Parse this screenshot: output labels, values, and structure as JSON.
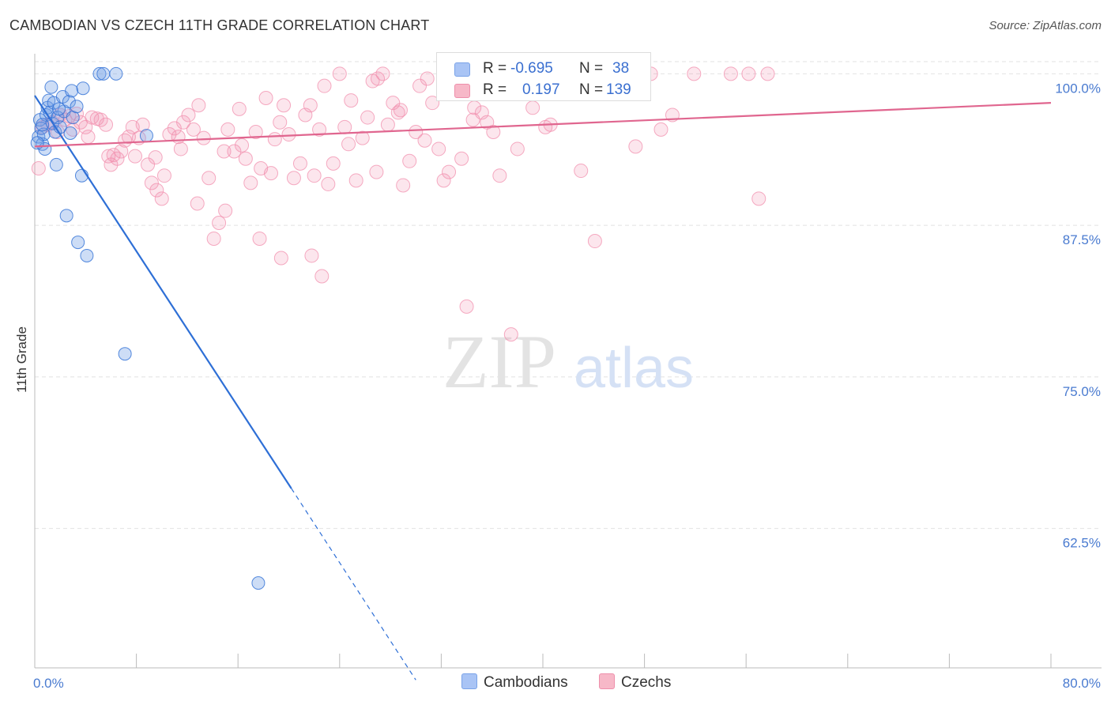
{
  "title": "CAMBODIAN VS CZECH 11TH GRADE CORRELATION CHART",
  "source": "Source: ZipAtlas.com",
  "watermark": {
    "zip": "ZIP",
    "atlas": "atlas"
  },
  "legend": {
    "rows": [
      {
        "r_label": "R =",
        "r_value": "-0.695",
        "n_label": "N =",
        "n_value": "38",
        "color": "#a9c4f5",
        "border": "#7aa3e8"
      },
      {
        "r_label": "R =",
        "r_value": "0.197",
        "n_label": "N =",
        "n_value": "139",
        "color": "#f7b8c8",
        "border": "#ee8fab"
      }
    ]
  },
  "bottom_legend": {
    "cambodians": "Cambodians",
    "czechs": "Czechs"
  },
  "colors": {
    "cambodian": "#6f9fe6",
    "cambodian_line": "#2e6fd6",
    "czech": "#f28fae",
    "czech_line": "#e0668f",
    "tick_label": "#4a7bd0",
    "grid": "#e2e2e2"
  },
  "chart_data": {
    "type": "scatter",
    "title": "CAMBODIAN VS CZECH 11TH GRADE CORRELATION CHART",
    "xlabel": "",
    "ylabel": "11th Grade",
    "xlim": [
      0,
      80
    ],
    "ylim": [
      51,
      101
    ],
    "x_tick_labels": [
      "0.0%",
      "80.0%"
    ],
    "y_ticks": [
      62.5,
      75.0,
      87.5,
      100.0
    ],
    "y_tick_labels": [
      "62.5%",
      "75.0%",
      "87.5%",
      "100.0%"
    ],
    "grid": true,
    "legend_position": "top-center",
    "series": [
      {
        "name": "Cambodians",
        "points": [
          [
            0.3,
            94.8
          ],
          [
            0.4,
            96.2
          ],
          [
            0.5,
            95.5
          ],
          [
            0.6,
            94.2
          ],
          [
            0.7,
            95.0
          ],
          [
            0.8,
            93.8
          ],
          [
            0.9,
            96.6
          ],
          [
            1.0,
            97.2
          ],
          [
            1.1,
            97.8
          ],
          [
            1.2,
            96.8
          ],
          [
            1.3,
            98.9
          ],
          [
            1.4,
            95.9
          ],
          [
            1.5,
            97.6
          ],
          [
            1.6,
            95.2
          ],
          [
            1.7,
            92.5
          ],
          [
            1.8,
            96.4
          ],
          [
            2.0,
            95.6
          ],
          [
            2.2,
            98.1
          ],
          [
            2.3,
            96.9
          ],
          [
            2.5,
            88.3
          ],
          [
            2.7,
            97.7
          ],
          [
            2.8,
            95.1
          ],
          [
            2.9,
            98.6
          ],
          [
            3.0,
            96.4
          ],
          [
            3.3,
            97.3
          ],
          [
            3.4,
            86.1
          ],
          [
            3.7,
            91.6
          ],
          [
            3.8,
            98.8
          ],
          [
            4.1,
            85.0
          ],
          [
            5.1,
            100.0
          ],
          [
            5.4,
            100.0
          ],
          [
            6.4,
            100.0
          ],
          [
            7.1,
            76.9
          ],
          [
            8.8,
            94.9
          ],
          [
            17.6,
            58.0
          ],
          [
            0.2,
            94.3
          ],
          [
            0.6,
            95.8
          ],
          [
            1.9,
            97.1
          ]
        ]
      },
      {
        "name": "Czechs",
        "points": [
          [
            0.3,
            92.2
          ],
          [
            0.6,
            95.6
          ],
          [
            1.0,
            95.8
          ],
          [
            1.4,
            96.0
          ],
          [
            1.8,
            95.2
          ],
          [
            2.0,
            96.6
          ],
          [
            2.4,
            96.2
          ],
          [
            2.7,
            96.5
          ],
          [
            3.0,
            95.4
          ],
          [
            3.3,
            96.7
          ],
          [
            3.6,
            96.0
          ],
          [
            4.0,
            95.6
          ],
          [
            4.2,
            94.8
          ],
          [
            4.5,
            96.4
          ],
          [
            4.9,
            96.3
          ],
          [
            5.2,
            96.2
          ],
          [
            5.6,
            95.8
          ],
          [
            6.0,
            92.5
          ],
          [
            6.2,
            93.3
          ],
          [
            6.5,
            93.0
          ],
          [
            6.8,
            93.6
          ],
          [
            7.1,
            94.5
          ],
          [
            7.4,
            94.8
          ],
          [
            7.7,
            95.6
          ],
          [
            8.2,
            94.7
          ],
          [
            8.5,
            95.8
          ],
          [
            8.9,
            92.5
          ],
          [
            9.2,
            91.0
          ],
          [
            9.5,
            93.1
          ],
          [
            10.0,
            89.7
          ],
          [
            10.2,
            91.6
          ],
          [
            10.6,
            95.0
          ],
          [
            11.0,
            95.5
          ],
          [
            11.3,
            94.8
          ],
          [
            11.7,
            96.0
          ],
          [
            12.1,
            96.6
          ],
          [
            12.5,
            95.4
          ],
          [
            12.9,
            97.4
          ],
          [
            13.3,
            94.7
          ],
          [
            13.7,
            91.4
          ],
          [
            14.1,
            86.4
          ],
          [
            14.5,
            87.7
          ],
          [
            14.9,
            93.6
          ],
          [
            15.2,
            95.4
          ],
          [
            15.7,
            93.6
          ],
          [
            16.1,
            97.1
          ],
          [
            16.3,
            94.1
          ],
          [
            16.6,
            93.0
          ],
          [
            17.0,
            91.0
          ],
          [
            17.4,
            95.2
          ],
          [
            17.8,
            92.2
          ],
          [
            18.2,
            98.0
          ],
          [
            18.6,
            91.8
          ],
          [
            18.9,
            94.6
          ],
          [
            19.3,
            96.0
          ],
          [
            19.6,
            97.4
          ],
          [
            20.0,
            95.0
          ],
          [
            20.4,
            91.4
          ],
          [
            20.9,
            92.6
          ],
          [
            21.3,
            96.6
          ],
          [
            21.7,
            97.4
          ],
          [
            22.0,
            91.6
          ],
          [
            22.4,
            95.4
          ],
          [
            22.8,
            99.0
          ],
          [
            23.1,
            90.9
          ],
          [
            23.5,
            92.6
          ],
          [
            24.0,
            100.0
          ],
          [
            24.4,
            95.6
          ],
          [
            24.9,
            97.8
          ],
          [
            25.3,
            91.2
          ],
          [
            25.8,
            94.7
          ],
          [
            26.2,
            96.4
          ],
          [
            26.6,
            99.4
          ],
          [
            27.0,
            99.6
          ],
          [
            27.4,
            100.0
          ],
          [
            27.8,
            95.8
          ],
          [
            28.2,
            97.6
          ],
          [
            28.6,
            96.8
          ],
          [
            29.0,
            90.8
          ],
          [
            29.5,
            92.8
          ],
          [
            30.0,
            95.2
          ],
          [
            30.3,
            99.0
          ],
          [
            30.9,
            99.6
          ],
          [
            31.3,
            97.6
          ],
          [
            31.8,
            93.8
          ],
          [
            32.2,
            91.2
          ],
          [
            32.6,
            91.9
          ],
          [
            33.0,
            99.2
          ],
          [
            33.6,
            93.0
          ],
          [
            34.0,
            80.8
          ],
          [
            34.6,
            97.2
          ],
          [
            35.2,
            96.8
          ],
          [
            35.6,
            96.0
          ],
          [
            36.0,
            99.0
          ],
          [
            36.6,
            91.6
          ],
          [
            37.1,
            99.4
          ],
          [
            37.5,
            78.5
          ],
          [
            38.0,
            93.8
          ],
          [
            38.6,
            99.6
          ],
          [
            39.2,
            97.2
          ],
          [
            39.7,
            100.0
          ],
          [
            40.2,
            95.6
          ],
          [
            40.6,
            95.8
          ],
          [
            41.0,
            99.8
          ],
          [
            41.6,
            99.4
          ],
          [
            42.1,
            99.6
          ],
          [
            42.5,
            100.0
          ],
          [
            43.0,
            92.0
          ],
          [
            43.6,
            100.0
          ],
          [
            44.1,
            86.2
          ],
          [
            44.6,
            99.4
          ],
          [
            45.2,
            100.0
          ],
          [
            46.0,
            99.6
          ],
          [
            47.3,
            94.0
          ],
          [
            48.5,
            100.0
          ],
          [
            49.3,
            95.4
          ],
          [
            50.2,
            96.6
          ],
          [
            51.9,
            100.0
          ],
          [
            54.8,
            100.0
          ],
          [
            56.2,
            100.0
          ],
          [
            57.0,
            89.7
          ],
          [
            57.7,
            100.0
          ],
          [
            5.8,
            93.2
          ],
          [
            7.9,
            93.2
          ],
          [
            9.6,
            90.4
          ],
          [
            11.5,
            93.8
          ],
          [
            12.8,
            89.3
          ],
          [
            15.0,
            88.7
          ],
          [
            17.7,
            86.4
          ],
          [
            19.4,
            84.8
          ],
          [
            21.8,
            85.0
          ],
          [
            22.6,
            83.3
          ],
          [
            28.8,
            97.0
          ],
          [
            34.5,
            96.2
          ],
          [
            36.1,
            95.2
          ],
          [
            42.8,
            100.0
          ],
          [
            26.9,
            91.9
          ],
          [
            30.7,
            94.5
          ],
          [
            24.7,
            94.2
          ]
        ]
      }
    ],
    "trend_lines": [
      {
        "series": "Cambodians",
        "x": [
          0.0,
          20.2
        ],
        "y": [
          98.2,
          65.8
        ],
        "dashed_extension": {
          "x": [
            20.2,
            30.0
          ],
          "y": [
            65.8,
            50.0
          ]
        }
      },
      {
        "series": "Czechs",
        "x": [
          0.0,
          80.0
        ],
        "y": [
          94.0,
          97.6
        ]
      }
    ]
  }
}
